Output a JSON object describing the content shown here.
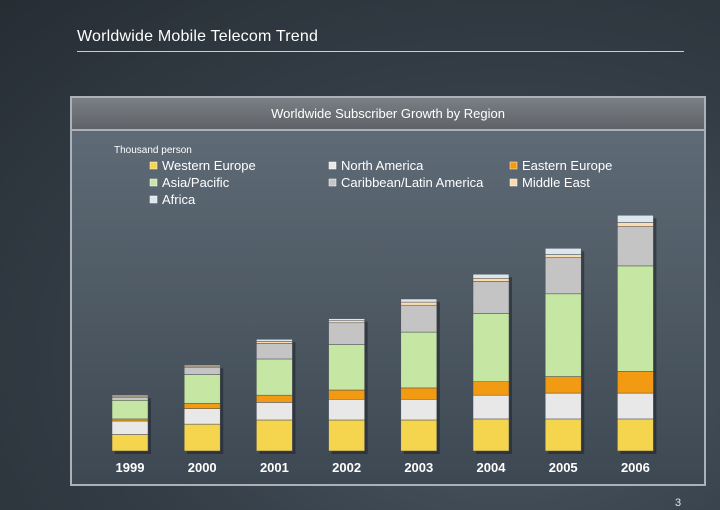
{
  "page": {
    "title": "Worldwide Mobile Telecom Trend",
    "page_number": "3"
  },
  "chart_data": {
    "type": "bar",
    "stacked": true,
    "title": "Worldwide Subscriber Growth by Region",
    "ylabel": "Thousand person",
    "xlabel": "",
    "categories": [
      "1999",
      "2000",
      "2001",
      "2002",
      "2003",
      "2004",
      "2005",
      "2006"
    ],
    "ylim": [
      0,
      235
    ],
    "grid": false,
    "legend_position": "top",
    "series": [
      {
        "name": "Western Europe",
        "color": "#f5d44e",
        "values": [
          16,
          26,
          30,
          30,
          30,
          31,
          31,
          31
        ]
      },
      {
        "name": "North America",
        "color": "#e8e8e8",
        "values": [
          13,
          15,
          17,
          20,
          20,
          23,
          25,
          25
        ]
      },
      {
        "name": "Eastern Europe",
        "color": "#f29a11",
        "values": [
          2,
          5,
          7,
          9,
          11,
          13,
          16,
          21
        ]
      },
      {
        "name": "Asia/Pacific",
        "color": "#c6e6a4",
        "values": [
          18,
          28,
          35,
          44,
          54,
          66,
          80,
          102
        ]
      },
      {
        "name": "Caribbean/Latin America",
        "color": "#c4c4c4",
        "values": [
          3,
          7,
          15,
          21,
          26,
          31,
          35,
          38
        ]
      },
      {
        "name": "Middle East",
        "color": "#fcdcae",
        "values": [
          1,
          1,
          2,
          2,
          3,
          3,
          3,
          4
        ]
      },
      {
        "name": "Africa",
        "color": "#dce6ef",
        "values": [
          1,
          1,
          2,
          2,
          3,
          4,
          6,
          7
        ]
      }
    ]
  }
}
